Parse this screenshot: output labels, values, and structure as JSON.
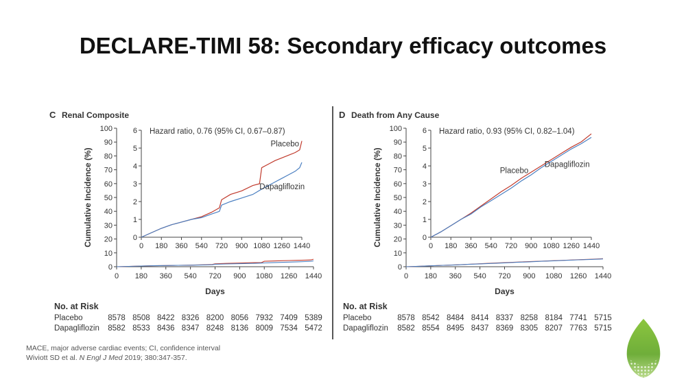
{
  "slide": {
    "title": "DECLARE-TIMI 58: Secondary efficacy outcomes",
    "footnotes": {
      "line1": "MACE, major adverse cardiac events; CI, confidence interval",
      "line2_prefix": "Wiviott SD et al. ",
      "line2_journal": "N Engl J Med",
      "line2_suffix": " 2019; 380:347-357."
    },
    "colors": {
      "placebo": "#c0392b",
      "dapagliflozin": "#4a7fc1",
      "logo_green": "#7ab648"
    },
    "logo": "leaf-logo"
  },
  "chart_data": [
    {
      "type": "line",
      "letter": "C",
      "title": "Renal Composite",
      "hazard_ratio_text": "Hazard ratio, 0.76 (95% CI, 0.67–0.87)",
      "xlabel": "Days",
      "ylabel": "Cumulative Incidence (%)",
      "xlim": [
        0,
        1440
      ],
      "ylim": [
        0,
        100
      ],
      "x_ticks": [
        0,
        180,
        360,
        540,
        720,
        900,
        1080,
        1260,
        1440
      ],
      "y_ticks": [
        0,
        10,
        20,
        30,
        40,
        50,
        60,
        70,
        80,
        90,
        100
      ],
      "inset": {
        "ylim": [
          0,
          6
        ],
        "y_ticks": [
          0,
          1,
          2,
          3,
          4,
          5,
          6
        ],
        "x_ticks": [
          0,
          180,
          360,
          540,
          720,
          900,
          1080,
          1260,
          1440
        ]
      },
      "series": [
        {
          "name": "Placebo",
          "x": [
            0,
            90,
            180,
            270,
            360,
            450,
            540,
            630,
            700,
            720,
            800,
            900,
            1000,
            1060,
            1080,
            1140,
            1200,
            1260,
            1320,
            1380,
            1420,
            1440
          ],
          "values": [
            0,
            0.25,
            0.5,
            0.7,
            0.85,
            1.0,
            1.15,
            1.4,
            1.65,
            2.1,
            2.4,
            2.6,
            2.9,
            3.0,
            3.9,
            4.1,
            4.3,
            4.45,
            4.6,
            4.75,
            4.9,
            5.4
          ]
        },
        {
          "name": "Dapagliflozin",
          "x": [
            0,
            90,
            180,
            270,
            360,
            450,
            540,
            630,
            700,
            720,
            800,
            900,
            1000,
            1080,
            1140,
            1200,
            1260,
            1320,
            1380,
            1420,
            1440
          ],
          "values": [
            0,
            0.25,
            0.5,
            0.7,
            0.85,
            1.0,
            1.1,
            1.3,
            1.45,
            1.8,
            2.0,
            2.2,
            2.4,
            2.7,
            2.9,
            3.1,
            3.3,
            3.5,
            3.7,
            3.9,
            4.2
          ]
        }
      ],
      "risk_table": {
        "title": "No. at Risk",
        "times": [
          0,
          180,
          360,
          540,
          720,
          900,
          1080,
          1260,
          1440
        ],
        "rows": [
          {
            "label": "Placebo",
            "values": [
              "8578",
              "8508",
              "8422",
              "8326",
              "8200",
              "8056",
              "7932",
              "7409",
              "5389"
            ]
          },
          {
            "label": "Dapagliflozin",
            "values": [
              "8582",
              "8533",
              "8436",
              "8347",
              "8248",
              "8136",
              "8009",
              "7534",
              "5472"
            ]
          }
        ]
      }
    },
    {
      "type": "line",
      "letter": "D",
      "title": "Death from Any Cause",
      "hazard_ratio_text": "Hazard ratio, 0.93 (95% CI, 0.82–1.04)",
      "xlabel": "Days",
      "ylabel": "Cumulative Incidence (%)",
      "xlim": [
        0,
        1440
      ],
      "ylim": [
        0,
        100
      ],
      "x_ticks": [
        0,
        180,
        360,
        540,
        720,
        900,
        1080,
        1260,
        1440
      ],
      "y_ticks": [
        0,
        10,
        20,
        30,
        40,
        50,
        60,
        70,
        80,
        90,
        100
      ],
      "inset": {
        "ylim": [
          0,
          6
        ],
        "y_ticks": [
          0,
          1,
          2,
          3,
          4,
          5,
          6
        ],
        "x_ticks": [
          0,
          180,
          360,
          540,
          720,
          900,
          1080,
          1260,
          1440
        ]
      },
      "series": [
        {
          "name": "Placebo",
          "x": [
            0,
            90,
            180,
            270,
            360,
            450,
            540,
            630,
            720,
            810,
            900,
            990,
            1080,
            1170,
            1260,
            1350,
            1440
          ],
          "values": [
            0,
            0.3,
            0.65,
            1.0,
            1.35,
            1.75,
            2.15,
            2.55,
            2.9,
            3.3,
            3.65,
            4.0,
            4.35,
            4.7,
            5.05,
            5.35,
            5.8
          ]
        },
        {
          "name": "Dapagliflozin",
          "x": [
            0,
            90,
            180,
            270,
            360,
            450,
            540,
            630,
            720,
            810,
            900,
            990,
            1080,
            1170,
            1260,
            1350,
            1440
          ],
          "values": [
            0,
            0.3,
            0.65,
            1.0,
            1.3,
            1.7,
            2.05,
            2.4,
            2.75,
            3.15,
            3.5,
            3.9,
            4.25,
            4.6,
            4.95,
            5.25,
            5.6
          ]
        }
      ],
      "risk_table": {
        "title": "No. at Risk",
        "times": [
          0,
          180,
          360,
          540,
          720,
          900,
          1080,
          1260,
          1440
        ],
        "rows": [
          {
            "label": "Placebo",
            "values": [
              "8578",
              "8542",
              "8484",
              "8414",
              "8337",
              "8258",
              "8184",
              "7741",
              "5715"
            ]
          },
          {
            "label": "Dapagliflozin",
            "values": [
              "8582",
              "8554",
              "8495",
              "8437",
              "8369",
              "8305",
              "8207",
              "7763",
              "5715"
            ]
          }
        ]
      }
    }
  ]
}
